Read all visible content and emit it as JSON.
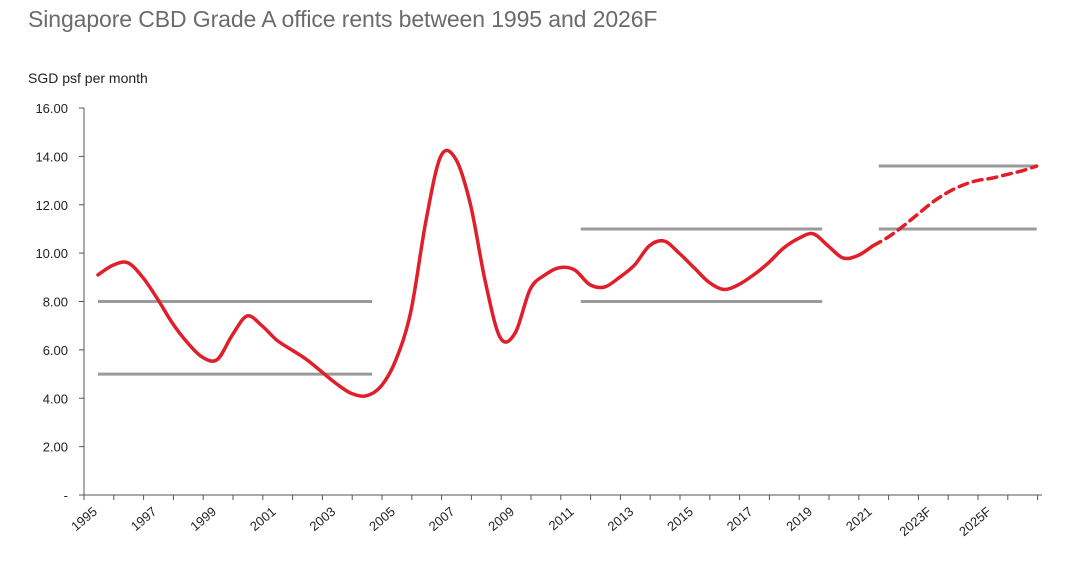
{
  "chart_data": {
    "type": "line",
    "title": "Singapore CBD Grade A office rents between 1995 and 2026F",
    "ylabel": "SGD psf per month",
    "xlabel": "",
    "ylim": [
      0,
      16
    ],
    "y_ticks": [
      "-",
      "2.00",
      "4.00",
      "6.00",
      "8.00",
      "10.00",
      "12.00",
      "14.00",
      "16.00"
    ],
    "x_tick_labels": [
      "1995",
      "1997",
      "1999",
      "2001",
      "2003",
      "2005",
      "2007",
      "2009",
      "2011",
      "2013",
      "2015",
      "2017",
      "2019",
      "2021",
      "2023F",
      "2025F"
    ],
    "x_range": [
      1995,
      2026.5
    ],
    "grid": false,
    "series": [
      {
        "style": "solid",
        "color": "#e01f2a",
        "x": [
          1995,
          1995.5,
          1996,
          1996.5,
          1997,
          1997.5,
          1998,
          1998.5,
          1999,
          1999.5,
          2000,
          2000.5,
          2001,
          2001.5,
          2002,
          2002.5,
          2003,
          2003.5,
          2004,
          2004.5,
          2005,
          2005.5,
          2006,
          2006.5,
          2007,
          2007.5,
          2008,
          2008.5,
          2009,
          2009.5,
          2010,
          2010.5,
          2011,
          2011.5,
          2012,
          2012.5,
          2013,
          2013.5,
          2014,
          2014.5,
          2015,
          2015.5,
          2016,
          2016.5,
          2017,
          2017.5,
          2018,
          2018.5,
          2019,
          2019.5,
          2020,
          2020.5,
          2021
        ],
        "y": [
          9.1,
          9.5,
          9.6,
          9.0,
          8.1,
          7.1,
          6.3,
          5.7,
          5.6,
          6.6,
          7.4,
          7.0,
          6.4,
          6.0,
          5.6,
          5.1,
          4.6,
          4.2,
          4.1,
          4.5,
          5.6,
          7.6,
          11.3,
          14.0,
          13.9,
          12.0,
          8.8,
          6.5,
          6.7,
          8.5,
          9.1,
          9.4,
          9.3,
          8.7,
          8.6,
          9.0,
          9.5,
          10.3,
          10.5,
          10.0,
          9.4,
          8.8,
          8.5,
          8.7,
          9.1,
          9.6,
          10.2,
          10.6,
          10.8,
          10.3,
          9.8,
          9.9,
          10.3
        ]
      },
      {
        "style": "dashed",
        "color": "#e01f2a",
        "x": [
          2021,
          2021.5,
          2022,
          2022.5,
          2023,
          2023.5,
          2024,
          2024.5,
          2025,
          2025.5,
          2026,
          2026.5
        ],
        "y": [
          10.3,
          10.65,
          11.1,
          11.6,
          12.1,
          12.5,
          12.8,
          13.0,
          13.1,
          13.25,
          13.4,
          13.6
        ]
      }
    ],
    "reference_ranges": [
      {
        "x": [
          1995,
          2004.2
        ],
        "y": [
          5,
          8
        ],
        "color": "#9a9a9a"
      },
      {
        "x": [
          2011.2,
          2019.3
        ],
        "y": [
          8,
          11
        ],
        "color": "#9a9a9a"
      },
      {
        "x": [
          2021.2,
          2026.5
        ],
        "y": [
          11,
          13.6
        ],
        "color": "#9a9a9a"
      }
    ]
  }
}
